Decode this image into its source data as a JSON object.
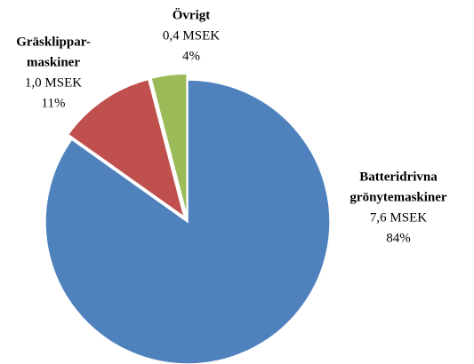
{
  "chart_data": {
    "type": "pie",
    "categories": [
      [
        "Batteridrivna",
        "grönytemaskiner"
      ],
      [
        "Gräsklippar-",
        "maskiner"
      ],
      [
        "Övrigt"
      ]
    ],
    "amount_labels": [
      "7,6 MSEK",
      "1,0 MSEK",
      "0,4 MSEK"
    ],
    "values": [
      84,
      11,
      4
    ],
    "value_labels": [
      "84%",
      "11%",
      "4%"
    ],
    "colors": [
      "#4f81bd",
      "#c0504d",
      "#9bbb59"
    ]
  }
}
